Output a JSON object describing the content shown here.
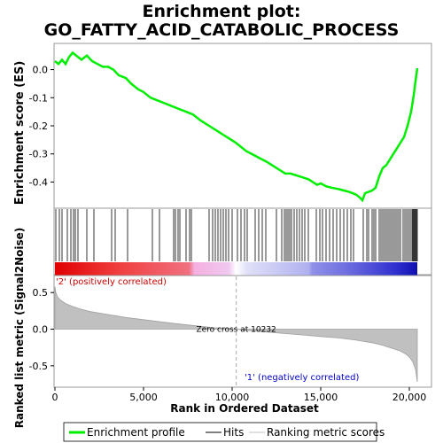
{
  "chart_data": {
    "type": "line",
    "title_line1": "Enrichment plot:",
    "title_line2": "GO_FATTY_ACID_CATABOLIC_PROCESS",
    "top_panel": {
      "ylabel": "Enrichment score (ES)",
      "ylim": [
        -0.49,
        0.09
      ],
      "yticks": [
        0.0,
        -0.1,
        -0.2,
        -0.3,
        -0.4
      ],
      "ytick_labels": [
        "0.0",
        "-0.1",
        "-0.2",
        "-0.3",
        "-0.4"
      ],
      "series": [
        {
          "name": "Enrichment profile",
          "color": "#00ff00",
          "x": [
            0,
            200,
            400,
            600,
            800,
            1000,
            1100,
            1300,
            1500,
            1800,
            2100,
            2400,
            2700,
            3000,
            3300,
            3600,
            4000,
            4300,
            4700,
            5000,
            5400,
            5800,
            6200,
            6600,
            7000,
            7400,
            7800,
            8200,
            8700,
            9200,
            9700,
            10200,
            10800,
            11400,
            12000,
            12500,
            13000,
            13300,
            13800,
            14300,
            14800,
            15000,
            15300,
            15600,
            16000,
            16300,
            16600,
            16800,
            17000,
            17200,
            17350,
            17500,
            17700,
            17900,
            18100,
            18300,
            18500,
            18700,
            18900,
            19100,
            19300,
            19500,
            19700,
            19900,
            20100,
            20250,
            20350,
            20450
          ],
          "y": [
            0.03,
            0.02,
            0.035,
            0.02,
            0.045,
            0.06,
            0.055,
            0.045,
            0.035,
            0.05,
            0.03,
            0.02,
            0.01,
            0.01,
            0.0,
            -0.02,
            -0.03,
            -0.05,
            -0.07,
            -0.08,
            -0.1,
            -0.11,
            -0.12,
            -0.13,
            -0.14,
            -0.15,
            -0.16,
            -0.18,
            -0.2,
            -0.22,
            -0.24,
            -0.26,
            -0.29,
            -0.31,
            -0.33,
            -0.35,
            -0.37,
            -0.37,
            -0.38,
            -0.39,
            -0.41,
            -0.405,
            -0.415,
            -0.42,
            -0.425,
            -0.43,
            -0.435,
            -0.44,
            -0.445,
            -0.455,
            -0.465,
            -0.44,
            -0.435,
            -0.43,
            -0.42,
            -0.38,
            -0.35,
            -0.34,
            -0.32,
            -0.3,
            -0.28,
            -0.26,
            -0.24,
            -0.2,
            -0.15,
            -0.09,
            -0.04,
            0.005
          ]
        }
      ]
    },
    "hits_panel": {
      "legend_label": "Hits",
      "hit_ranks": [
        50,
        250,
        400,
        700,
        900,
        1050,
        1150,
        1300,
        1800,
        2200,
        3200,
        3400,
        4100,
        5500,
        5900,
        6700,
        6800,
        6950,
        7050,
        7400,
        7600,
        7700,
        8700,
        8900,
        9050,
        9200,
        9350,
        9500,
        9650,
        9800,
        10000,
        10300,
        10500,
        10700,
        10850,
        11300,
        11500,
        11700,
        11900,
        12500,
        12800,
        12950,
        13050,
        13150,
        13250,
        13350,
        13500,
        13650,
        13800,
        13950,
        14100,
        14300,
        14750,
        14950,
        15100,
        15300,
        15500,
        15700,
        15900,
        16100,
        16300,
        16500,
        16700,
        16850,
        17400,
        17600,
        17700,
        17900,
        18000,
        18100,
        18300,
        18400,
        18500,
        18600,
        18700,
        18800,
        18900,
        19000,
        19100,
        19200,
        19300,
        19400,
        19500,
        19650,
        19750,
        19850,
        19950,
        20050,
        20150,
        20200,
        20250,
        20300,
        20350,
        20400,
        20450
      ]
    },
    "gradient_labels": {
      "positive": "'2' (positively correlated)",
      "negative": "'1' (negatively correlated)"
    },
    "bottom_panel": {
      "ylabel": "Ranked list metric (Signal2Noise)",
      "xlabel": "Rank in Ordered Dataset",
      "ylim": [
        -0.78,
        0.72
      ],
      "yticks": [
        0.5,
        0.0,
        -0.5
      ],
      "ytick_labels": [
        "0.5",
        "0.0",
        "-0.5"
      ],
      "xlim": [
        0,
        21200
      ],
      "xticks": [
        0,
        5000,
        10000,
        15000,
        20000
      ],
      "xtick_labels": [
        "0",
        "5,000",
        "10,000",
        "15,000",
        "20,000"
      ],
      "zero_cross_rank": 10232,
      "zero_cross_label": "Zero cross at 10232",
      "metric_curve": {
        "x": [
          0,
          50,
          150,
          300,
          600,
          1000,
          1500,
          2000,
          3000,
          4000,
          5000,
          6000,
          7000,
          8000,
          9000,
          10232,
          11000,
          12000,
          13000,
          14000,
          15000,
          16000,
          17000,
          17500,
          18000,
          18500,
          19000,
          19500,
          19800,
          20000,
          20200,
          20350,
          20450
        ],
        "y": [
          0.58,
          0.5,
          0.44,
          0.4,
          0.35,
          0.31,
          0.27,
          0.24,
          0.2,
          0.16,
          0.13,
          0.1,
          0.07,
          0.045,
          0.02,
          0.0,
          -0.02,
          -0.04,
          -0.06,
          -0.08,
          -0.1,
          -0.12,
          -0.15,
          -0.17,
          -0.19,
          -0.22,
          -0.26,
          -0.3,
          -0.34,
          -0.38,
          -0.45,
          -0.55,
          -0.72
        ]
      }
    },
    "legend": {
      "items": [
        "Enrichment profile",
        "Hits",
        "Ranking metric scores"
      ]
    }
  }
}
